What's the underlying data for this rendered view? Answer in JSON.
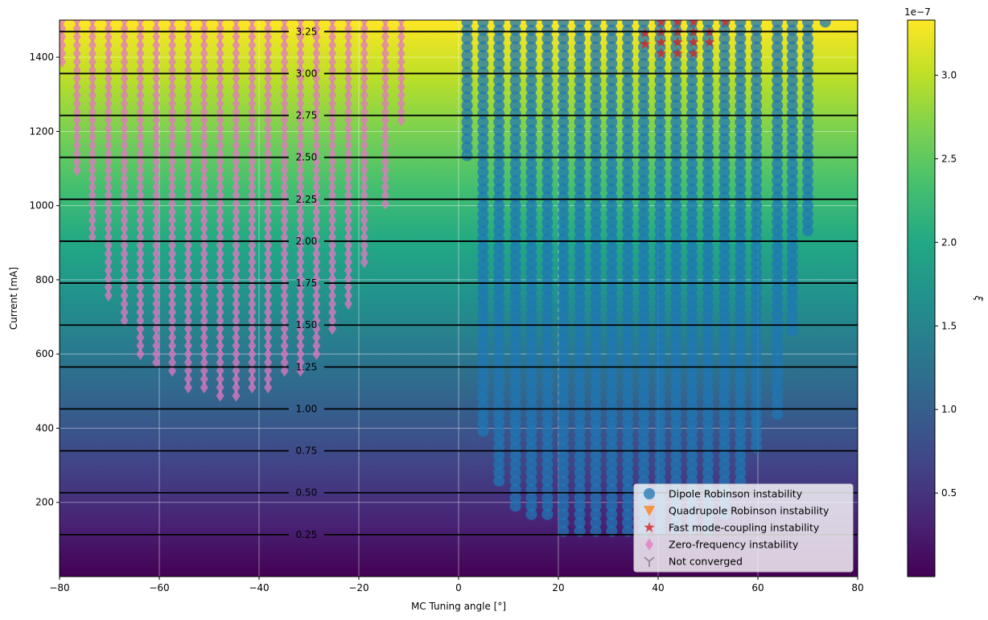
{
  "chart_data": {
    "type": "scatter",
    "background": "heatmap",
    "xlabel": "MC Tuning angle [°]",
    "ylabel": "Current [mA]",
    "xlim": [
      -80,
      80
    ],
    "ylim": [
      0,
      1500
    ],
    "x_ticks": [
      -80,
      -60,
      -40,
      -20,
      0,
      20,
      40,
      60,
      80
    ],
    "x_tick_labels": [
      "−80",
      "−60",
      "−40",
      "−20",
      "0",
      "20",
      "40",
      "60",
      "80"
    ],
    "y_ticks": [
      200,
      400,
      600,
      800,
      1000,
      1200,
      1400
    ],
    "y_tick_labels": [
      "200",
      "400",
      "600",
      "800",
      "1000",
      "1200",
      "1400"
    ],
    "grid": true,
    "colormap": "viridis",
    "colorbar": {
      "label": "ξ",
      "offset_text": "1e−7",
      "range": [
        0.0,
        3.33
      ],
      "ticks": [
        0.5,
        1.0,
        1.5,
        2.0,
        2.5,
        3.0
      ],
      "tick_labels": [
        "0.5",
        "1.0",
        "1.5",
        "2.0",
        "2.5",
        "3.0"
      ]
    },
    "contour_levels": [
      {
        "value": 0.25,
        "label": "0.25",
        "current": 113
      },
      {
        "value": 0.5,
        "label": "0.50",
        "current": 226
      },
      {
        "value": 0.75,
        "label": "0.75",
        "current": 339
      },
      {
        "value": 1.0,
        "label": "1.00",
        "current": 452
      },
      {
        "value": 1.25,
        "label": "1.25",
        "current": 565
      },
      {
        "value": 1.5,
        "label": "1.50",
        "current": 678
      },
      {
        "value": 1.75,
        "label": "1.75",
        "current": 791
      },
      {
        "value": 2.0,
        "label": "2.00",
        "current": 904
      },
      {
        "value": 2.25,
        "label": "2.25",
        "current": 1017
      },
      {
        "value": 2.5,
        "label": "2.50",
        "current": 1130
      },
      {
        "value": 2.75,
        "label": "2.75",
        "current": 1243
      },
      {
        "value": 3.0,
        "label": "3.00",
        "current": 1356
      },
      {
        "value": 3.25,
        "label": "3.25",
        "current": 1469
      }
    ],
    "contour_label_x": -30.5,
    "y_step": 22.5,
    "legend": {
      "placement": "lower right",
      "entries": [
        {
          "label": "Dipole Robinson instability",
          "marker": "circle",
          "color": "#1f77b4"
        },
        {
          "label": "Quadrupole Robinson instability",
          "marker": "triangle-down",
          "color": "#ff7f0e"
        },
        {
          "label": "Fast mode-coupling instability",
          "marker": "star",
          "color": "#d62728"
        },
        {
          "label": "Zero-frequency instability",
          "marker": "diamond",
          "color": "#e377c2"
        },
        {
          "label": "Not converged",
          "marker": "tri-down",
          "color": "#7f7f7f"
        }
      ]
    },
    "series": [
      {
        "name": "Zero-frequency instability",
        "marker": "diamond",
        "color": "#e377c2",
        "columns": [
          {
            "x": -79.5,
            "ymin": 1398,
            "ymax": 1500
          },
          {
            "x": -76.5,
            "ymin": 1087,
            "ymax": 1500
          },
          {
            "x": -73.4,
            "ymin": 917,
            "ymax": 1500
          },
          {
            "x": -70.2,
            "ymin": 760,
            "ymax": 1500
          },
          {
            "x": -67.0,
            "ymin": 700,
            "ymax": 1500
          },
          {
            "x": -63.8,
            "ymin": 610,
            "ymax": 1500
          },
          {
            "x": -60.6,
            "ymin": 583,
            "ymax": 1500
          },
          {
            "x": -57.4,
            "ymin": 550,
            "ymax": 1500
          },
          {
            "x": -54.2,
            "ymin": 520,
            "ymax": 1500
          },
          {
            "x": -51.0,
            "ymin": 520,
            "ymax": 1500
          },
          {
            "x": -47.8,
            "ymin": 497,
            "ymax": 1500
          },
          {
            "x": -44.6,
            "ymin": 490,
            "ymax": 1500
          },
          {
            "x": -41.4,
            "ymin": 520,
            "ymax": 1500
          },
          {
            "x": -38.2,
            "ymin": 520,
            "ymax": 1500
          },
          {
            "x": -34.9,
            "ymin": 550,
            "ymax": 1500
          },
          {
            "x": -31.7,
            "ymin": 550,
            "ymax": 1500
          },
          {
            "x": -28.5,
            "ymin": 610,
            "ymax": 1500
          },
          {
            "x": -25.3,
            "ymin": 670,
            "ymax": 1500
          },
          {
            "x": -22.1,
            "ymin": 730,
            "ymax": 1500
          },
          {
            "x": -18.9,
            "ymin": 850,
            "ymax": 1500
          },
          {
            "x": -14.7,
            "ymin": 1010,
            "ymax": 1500
          },
          {
            "x": -11.5,
            "ymin": 1220,
            "ymax": 1500
          }
        ]
      },
      {
        "name": "Dipole Robinson instability",
        "marker": "circle",
        "color": "#1f77b4",
        "columns": [
          {
            "x": 1.7,
            "ymin": 1135,
            "ymax": 1495
          },
          {
            "x": 4.9,
            "ymin": 398,
            "ymax": 1495
          },
          {
            "x": 8.1,
            "ymin": 248,
            "ymax": 1495
          },
          {
            "x": 11.4,
            "ymin": 188,
            "ymax": 1495
          },
          {
            "x": 14.6,
            "ymin": 158,
            "ymax": 1495
          },
          {
            "x": 17.8,
            "ymin": 158,
            "ymax": 1495
          },
          {
            "x": 21.0,
            "ymin": 113,
            "ymax": 1495
          },
          {
            "x": 24.3,
            "ymin": 113,
            "ymax": 1495
          },
          {
            "x": 27.5,
            "ymin": 113,
            "ymax": 1495
          },
          {
            "x": 30.7,
            "ymin": 113,
            "ymax": 1495
          },
          {
            "x": 33.9,
            "ymin": 113,
            "ymax": 1495
          },
          {
            "x": 37.1,
            "ymin": 113,
            "ymax": 1495
          },
          {
            "x": 40.4,
            "ymin": 113,
            "ymax": 1495
          },
          {
            "x": 43.6,
            "ymin": 113,
            "ymax": 1495
          },
          {
            "x": 46.8,
            "ymin": 113,
            "ymax": 1495
          },
          {
            "x": 50.0,
            "ymin": 113,
            "ymax": 1495
          },
          {
            "x": 53.3,
            "ymin": 158,
            "ymax": 1495
          },
          {
            "x": 56.5,
            "ymin": 248,
            "ymax": 1495
          },
          {
            "x": 59.7,
            "ymin": 338,
            "ymax": 1495
          },
          {
            "x": 63.9,
            "ymin": 428,
            "ymax": 1495
          },
          {
            "x": 66.9,
            "ymin": 653,
            "ymax": 1495
          },
          {
            "x": 70.0,
            "ymin": 923,
            "ymax": 1495
          },
          {
            "x": 73.5,
            "ymin": 1495,
            "ymax": 1495
          }
        ]
      },
      {
        "name": "Fast mode-coupling instability",
        "marker": "star",
        "color": "#d62728",
        "points": [
          {
            "x": 37.4,
            "y": 1435
          },
          {
            "x": 37.4,
            "y": 1465
          },
          {
            "x": 40.6,
            "y": 1410
          },
          {
            "x": 40.6,
            "y": 1440
          },
          {
            "x": 40.6,
            "y": 1468
          },
          {
            "x": 40.6,
            "y": 1495
          },
          {
            "x": 43.9,
            "y": 1410
          },
          {
            "x": 43.9,
            "y": 1440
          },
          {
            "x": 43.9,
            "y": 1468
          },
          {
            "x": 43.9,
            "y": 1495
          },
          {
            "x": 47.1,
            "y": 1410
          },
          {
            "x": 47.1,
            "y": 1440
          },
          {
            "x": 47.1,
            "y": 1468
          },
          {
            "x": 47.1,
            "y": 1495
          },
          {
            "x": 50.3,
            "y": 1440
          },
          {
            "x": 50.3,
            "y": 1468
          },
          {
            "x": 53.5,
            "y": 1495
          }
        ]
      },
      {
        "name": "Quadrupole Robinson instability",
        "marker": "triangle-down",
        "color": "#ff7f0e",
        "points": []
      },
      {
        "name": "Not converged",
        "marker": "tri-down",
        "color": "#7f7f7f",
        "points": []
      }
    ]
  }
}
